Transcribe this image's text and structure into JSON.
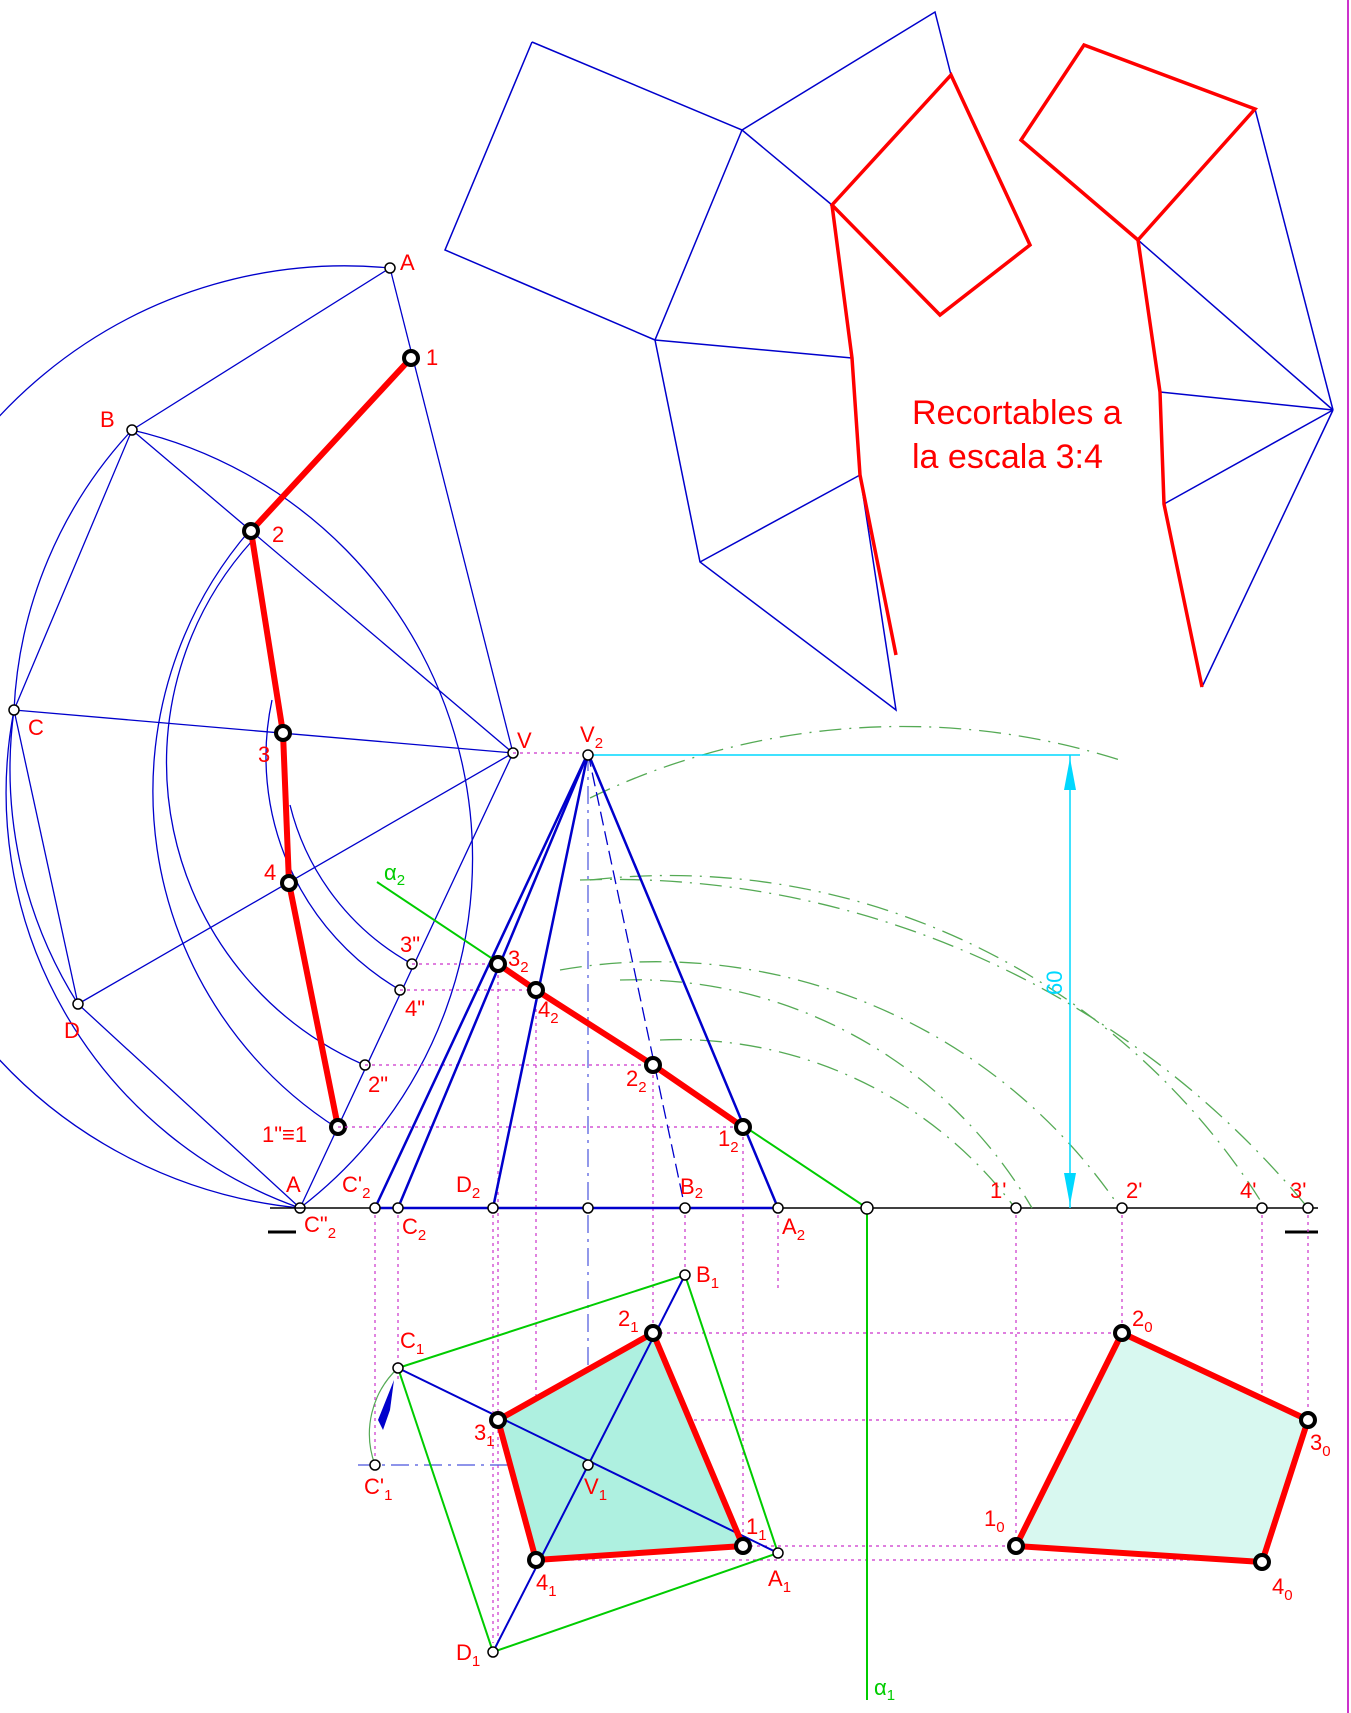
{
  "note": {
    "line1": "Recortables a",
    "line2": "la escala 3:4"
  },
  "dimension": {
    "value": "60"
  },
  "colors": {
    "construction": "#0000cc",
    "section": "#ff0000",
    "plane": "#00cc00",
    "dimension": "#00d8ff",
    "projection_lines": "#cc33cc",
    "arcs": "#55aa55",
    "fill": "#aef0e0"
  },
  "plane_labels": {
    "alpha2": "α",
    "alpha2_sub": "2",
    "alpha1": "α",
    "alpha1_sub": "1"
  },
  "development_labels": {
    "A": "A",
    "B": "B",
    "C": "C",
    "D": "D",
    "V": "V",
    "p1": "1",
    "p2": "2",
    "p3": "3",
    "p4": "4",
    "p2dd": "2\"",
    "p3dd": "3\"",
    "p4dd": "4\"",
    "p1dd": "1\"≡1",
    "A0": "A",
    "C2dd": "C\"",
    "C2dd_sub": "2"
  },
  "elevation_labels": {
    "V2": "V",
    "V2_sub": "2",
    "C2p": "C'",
    "C2p_sub": "2",
    "C2": "C",
    "C2_sub": "2",
    "D2": "D",
    "D2_sub": "2",
    "B2": "B",
    "B2_sub": "2",
    "A2": "A",
    "A2_sub": "2",
    "s1": "1",
    "s1_sub": "2",
    "s2": "2",
    "s2_sub": "2",
    "s3": "3",
    "s3_sub": "2",
    "s4": "4",
    "s4_sub": "2",
    "r1": "1'",
    "r2": "2'",
    "r4": "4'",
    "r3": "3'"
  },
  "plan_labels": {
    "B1": "B",
    "B1_sub": "1",
    "C1": "C",
    "C1_sub": "1",
    "C1p": "C'",
    "C1p_sub": "1",
    "V1": "V",
    "V1_sub": "1",
    "A1": "A",
    "A1_sub": "1",
    "D1": "D",
    "D1_sub": "1",
    "p2": "2",
    "p2_sub": "1",
    "p3": "3",
    "p3_sub": "1",
    "p1": "1",
    "p1_sub": "1",
    "p4": "4",
    "p4_sub": "1"
  },
  "true_shape_labels": {
    "p1": "1",
    "p1_sub": "0",
    "p2": "2",
    "p2_sub": "0",
    "p3": "3",
    "p3_sub": "0",
    "p4": "4",
    "p4_sub": "0"
  }
}
